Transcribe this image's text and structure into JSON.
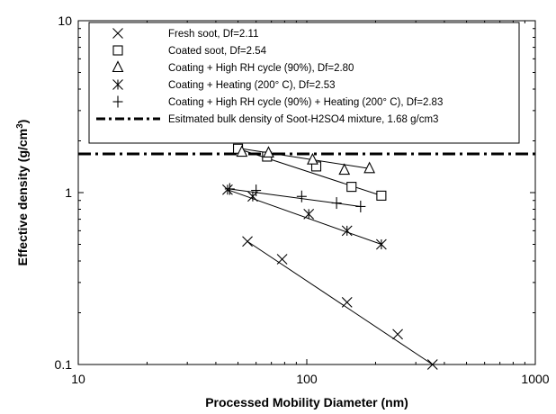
{
  "chart_data": {
    "type": "scatter",
    "title": "",
    "xlabel": "Processed Mobility Diameter (nm)",
    "ylabel_main": "Effective density (g/cm",
    "ylabel_sup": "3",
    "ylabel_tail": ")",
    "x_scale": "log",
    "y_scale": "log",
    "xlim": [
      10,
      1000
    ],
    "ylim": [
      0.1,
      10
    ],
    "x_ticks": [
      "10",
      "100",
      "1000"
    ],
    "y_ticks": [
      "0.1",
      "1",
      "10"
    ],
    "grid": false,
    "legend_position": "top-right",
    "series": [
      {
        "name": "Fresh soot, Df=2.11",
        "marker": "x",
        "points": [
          [
            55,
            0.52
          ],
          [
            78,
            0.41
          ],
          [
            150,
            0.23
          ],
          [
            250,
            0.15
          ],
          [
            355,
            0.1
          ]
        ],
        "fit": [
          [
            55,
            0.52
          ],
          [
            355,
            0.1
          ]
        ]
      },
      {
        "name": "Coated soot, Df=2.54",
        "marker": "square",
        "points": [
          [
            50,
            1.8
          ],
          [
            67,
            1.62
          ],
          [
            110,
            1.42
          ],
          [
            157,
            1.08
          ],
          [
            212,
            0.96
          ]
        ],
        "fit": [
          [
            50,
            1.8
          ],
          [
            212,
            0.96
          ]
        ]
      },
      {
        "name": "Coating + High RH cycle (90%), Df=2.80",
        "marker": "triangle",
        "points": [
          [
            52,
            1.72
          ],
          [
            68,
            1.7
          ],
          [
            106,
            1.55
          ],
          [
            146,
            1.35
          ],
          [
            188,
            1.38
          ]
        ],
        "fit": [
          [
            52,
            1.8
          ],
          [
            188,
            1.38
          ]
        ]
      },
      {
        "name": "Coating + Heating (200° C), Df=2.53",
        "marker": "asterisk",
        "points": [
          [
            45,
            1.04
          ],
          [
            58,
            0.95
          ],
          [
            102,
            0.75
          ],
          [
            150,
            0.6
          ],
          [
            212,
            0.5
          ]
        ],
        "fit": [
          [
            45,
            1.04
          ],
          [
            212,
            0.5
          ]
        ]
      },
      {
        "name": "Coating + High RH cycle (90%) + Heating (200° C), Df=2.83",
        "marker": "plus",
        "points": [
          [
            46,
            1.05
          ],
          [
            60,
            1.03
          ],
          [
            95,
            0.95
          ],
          [
            135,
            0.87
          ],
          [
            172,
            0.83
          ]
        ],
        "fit": [
          [
            46,
            1.05
          ],
          [
            172,
            0.83
          ]
        ]
      }
    ],
    "reference_line": {
      "name": "Esitmated bulk density of Soot-H2SO4 mixture, 1.68 g/cm3",
      "y": 1.68,
      "style": "dash-dot"
    }
  }
}
